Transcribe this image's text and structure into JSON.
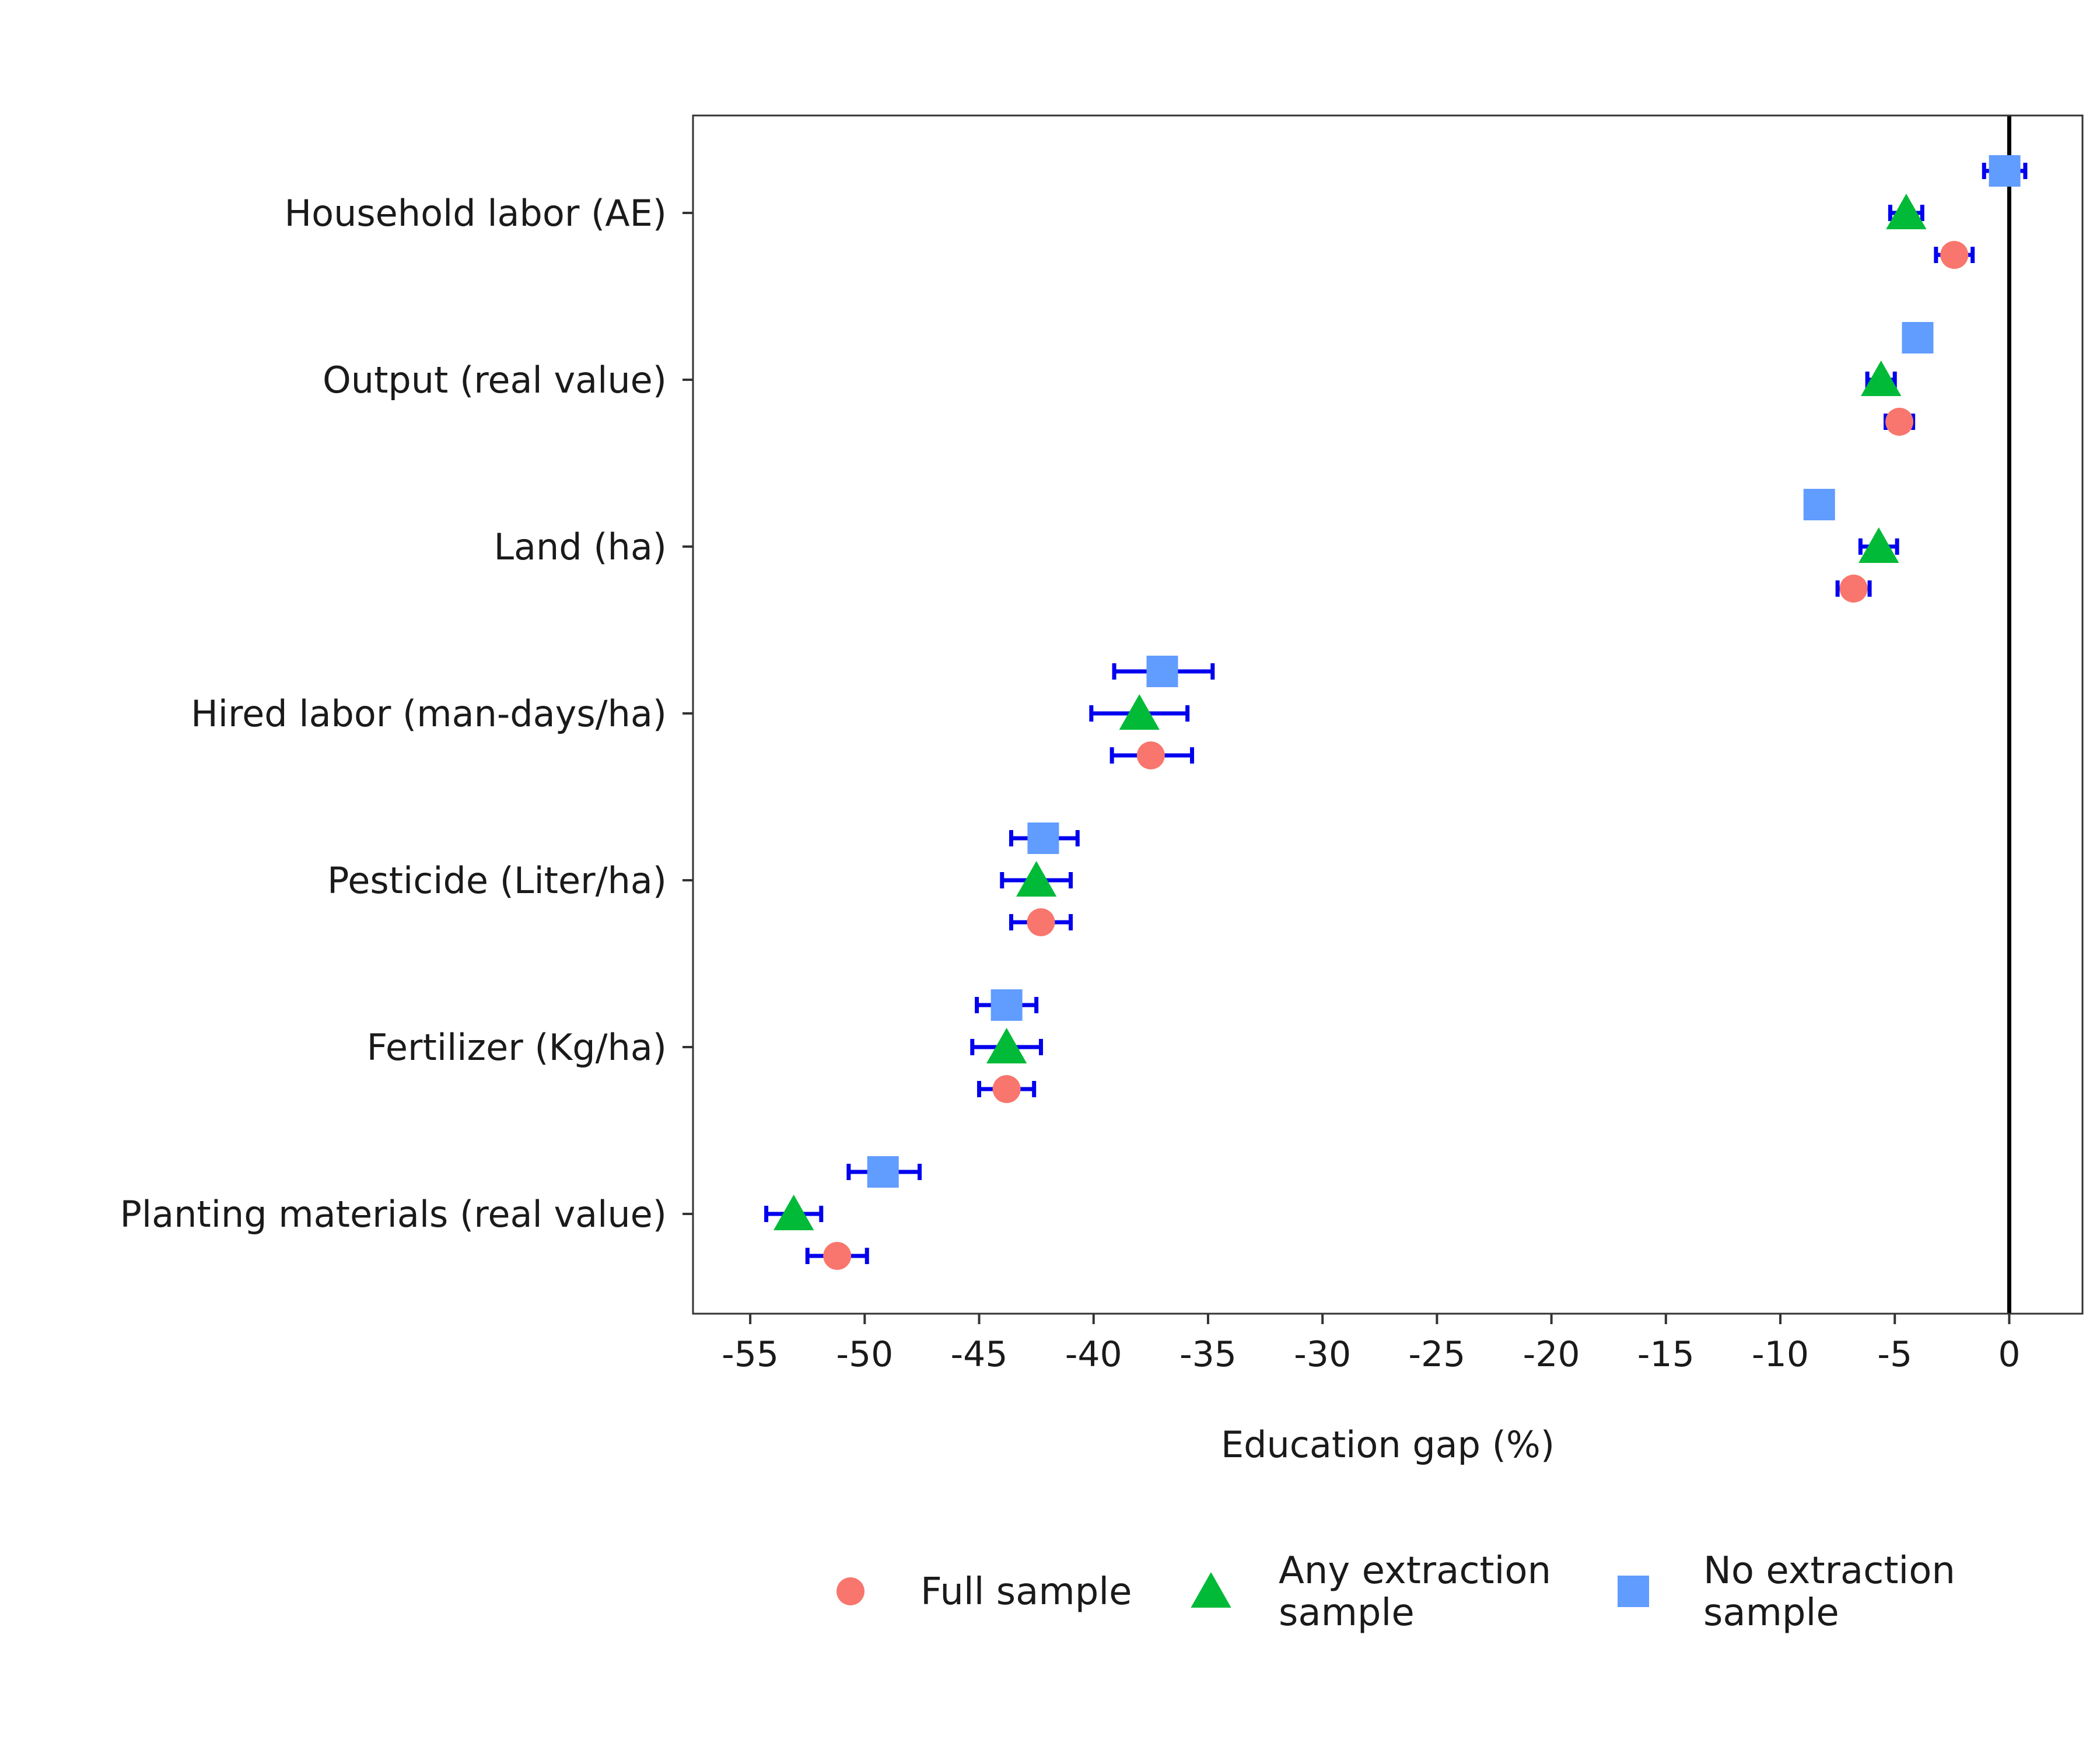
{
  "chart_data": {
    "type": "scatter",
    "title": "",
    "xlabel": "Education gap (%)",
    "ylabel": "",
    "xlim": [
      -57.5,
      3.2
    ],
    "x_ticks": [
      -55,
      -50,
      -45,
      -40,
      -35,
      -30,
      -25,
      -20,
      -15,
      -10,
      -5,
      0
    ],
    "x_tick_labels": [
      "-55",
      "-50",
      "-45",
      "-40",
      "-35",
      "-30",
      "-25",
      "-20",
      "-15",
      "-10",
      "-5",
      "0"
    ],
    "reference_line_x": 0,
    "grid": false,
    "legend_position": "bottom",
    "categories": [
      "Household labor (AE)",
      "Output (real value)",
      "Land (ha)",
      "Hired labor (man-days/ha)",
      "Pesticide (Liter/ha)",
      "Fertilizer (Kg/ha)",
      "Planting materials (real value)"
    ],
    "errorbar_color": "#0000ee",
    "series": [
      {
        "name": "Full sample",
        "marker": "circle",
        "color": "#f8766d",
        "values": [
          -2.4,
          -4.8,
          -6.8,
          -37.5,
          -42.3,
          -43.8,
          -51.2
        ],
        "ci_low": [
          -3.2,
          -5.4,
          -7.5,
          -39.2,
          -43.6,
          -45.0,
          -52.5
        ],
        "ci_high": [
          -1.6,
          -4.2,
          -6.1,
          -35.7,
          -41.0,
          -42.6,
          -49.9
        ]
      },
      {
        "name": "Any extraction\nsample",
        "marker": "triangle",
        "color": "#00ba38",
        "values": [
          -4.5,
          -5.6,
          -5.7,
          -38.0,
          -42.5,
          -43.8,
          -53.1
        ],
        "ci_low": [
          -5.2,
          -6.2,
          -6.5,
          -40.1,
          -44.0,
          -45.3,
          -54.3
        ],
        "ci_high": [
          -3.8,
          -5.0,
          -4.9,
          -35.9,
          -41.0,
          -42.3,
          -51.9
        ]
      },
      {
        "name": "No extraction\nsample",
        "marker": "square",
        "color": "#619cff",
        "values": [
          -0.2,
          -4.0,
          -8.3,
          -37.0,
          -42.2,
          -43.8,
          -49.2
        ],
        "ci_low": [
          -1.1,
          -4.5,
          -8.8,
          -39.1,
          -43.6,
          -45.1,
          -50.7
        ],
        "ci_high": [
          0.7,
          -3.5,
          -7.8,
          -34.8,
          -40.7,
          -42.5,
          -47.6
        ]
      }
    ]
  }
}
